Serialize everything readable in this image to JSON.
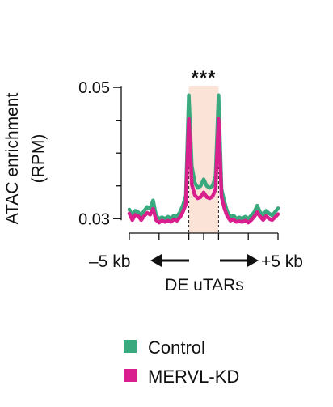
{
  "chart_data": {
    "type": "line",
    "title": "",
    "ylabel_lines": [
      "ATAC enrichment",
      "(RPM)"
    ],
    "xlabel": "DE uTARs",
    "x_tick_labels": {
      "left": "–5 kb",
      "right": "+5 kb"
    },
    "x_range": [
      -5,
      5
    ],
    "y_range": [
      0.0288,
      0.051
    ],
    "y_ticks": [
      0.03,
      0.05
    ],
    "y_tick_labels": [
      "0.03",
      "0.05"
    ],
    "highlight_region": {
      "x": [
        -1,
        1
      ],
      "color": "#fbe3d8"
    },
    "region_boundaries": [
      -1,
      1
    ],
    "significance_label": "***",
    "legend_position": "bottom",
    "x": [
      -5.0,
      -4.8,
      -4.6,
      -4.4,
      -4.2,
      -4.0,
      -3.8,
      -3.6,
      -3.4,
      -3.2,
      -3.0,
      -2.8,
      -2.6,
      -2.4,
      -2.2,
      -2.0,
      -1.8,
      -1.6,
      -1.4,
      -1.2,
      -1.0,
      -0.8,
      -0.6,
      -0.4,
      -0.2,
      0.0,
      0.2,
      0.4,
      0.6,
      0.8,
      1.0,
      1.2,
      1.4,
      1.6,
      1.8,
      2.0,
      2.2,
      2.4,
      2.6,
      2.8,
      3.0,
      3.2,
      3.4,
      3.6,
      3.8,
      4.0,
      4.2,
      4.4,
      4.6,
      4.8,
      5.0
    ],
    "series": [
      {
        "name": "Control",
        "color": "#3aaa7e",
        "values": [
          0.0314,
          0.0305,
          0.0312,
          0.031,
          0.0305,
          0.0312,
          0.0318,
          0.0315,
          0.0328,
          0.0305,
          0.03,
          0.0302,
          0.03,
          0.0303,
          0.03,
          0.0305,
          0.0303,
          0.031,
          0.032,
          0.0335,
          0.0488,
          0.038,
          0.0355,
          0.0347,
          0.035,
          0.036,
          0.035,
          0.0347,
          0.035,
          0.0365,
          0.0488,
          0.0345,
          0.0325,
          0.031,
          0.0303,
          0.0305,
          0.03,
          0.0302,
          0.03,
          0.0303,
          0.03,
          0.0305,
          0.031,
          0.032,
          0.031,
          0.0305,
          0.0312,
          0.0308,
          0.0305,
          0.031,
          0.0316
        ]
      },
      {
        "name": "MERVL-KD",
        "color": "#d91f8d",
        "values": [
          0.0308,
          0.0298,
          0.0306,
          0.0304,
          0.0298,
          0.0304,
          0.0309,
          0.0306,
          0.0315,
          0.0298,
          0.0294,
          0.0297,
          0.0295,
          0.0297,
          0.0295,
          0.0299,
          0.0297,
          0.0302,
          0.031,
          0.0322,
          0.0452,
          0.0352,
          0.0336,
          0.0331,
          0.0333,
          0.034,
          0.0333,
          0.0331,
          0.0334,
          0.0345,
          0.0452,
          0.0333,
          0.0315,
          0.0303,
          0.0297,
          0.0299,
          0.0295,
          0.0296,
          0.0295,
          0.0297,
          0.0294,
          0.0298,
          0.0303,
          0.031,
          0.0303,
          0.0298,
          0.0304,
          0.03,
          0.0298,
          0.0302,
          0.0307
        ]
      }
    ]
  }
}
